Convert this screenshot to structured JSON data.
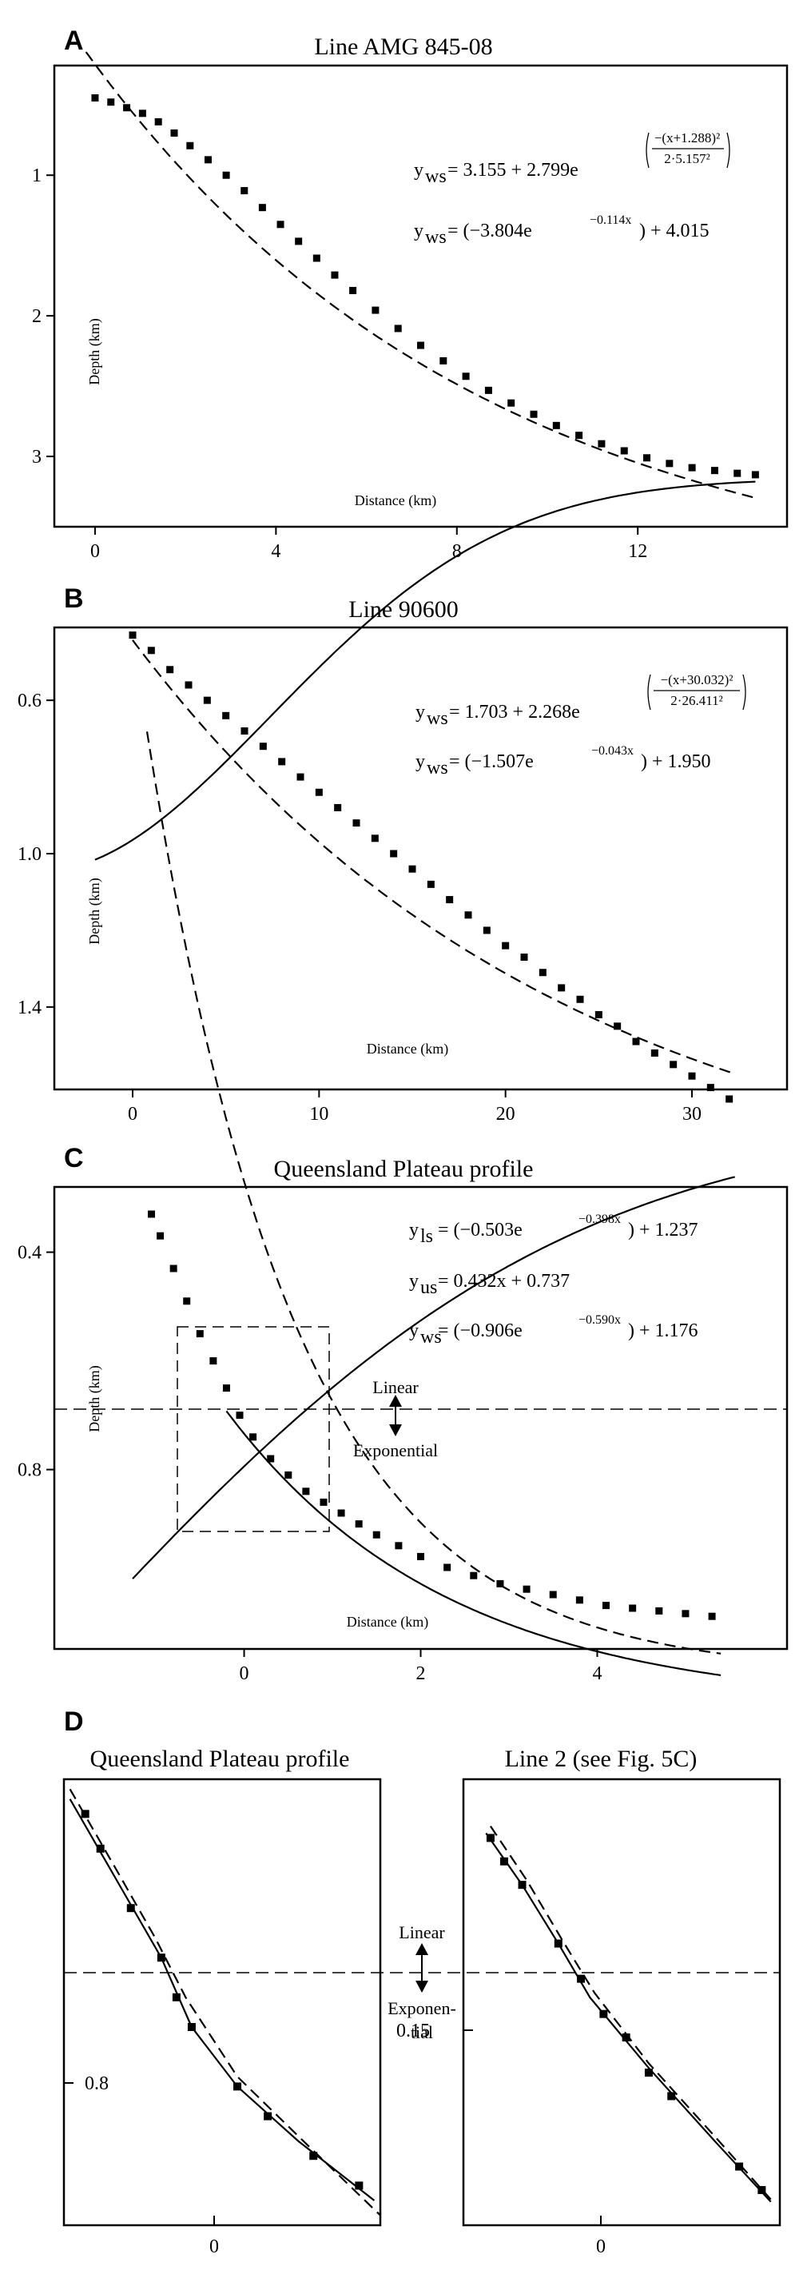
{
  "chart_data": [
    {
      "panel": "A",
      "type": "scatter",
      "title": "Line AMG 845-08",
      "xlabel": "Distance (km)",
      "ylabel": "Depth (km)",
      "xlim": [
        -0.9,
        15.3
      ],
      "ylim": [
        3.5,
        0.22
      ],
      "xticks": [
        "0",
        "4",
        "8",
        "12"
      ],
      "yticks": [
        "1",
        "2",
        "3"
      ],
      "x": [
        0,
        0.35,
        0.7,
        1.05,
        1.4,
        1.75,
        2.1,
        2.5,
        2.9,
        3.3,
        3.7,
        4.1,
        4.5,
        4.9,
        5.3,
        5.7,
        6.2,
        6.7,
        7.2,
        7.7,
        8.2,
        8.7,
        9.2,
        9.7,
        10.2,
        10.7,
        11.2,
        11.7,
        12.2,
        12.7,
        13.2,
        13.7,
        14.2,
        14.6
      ],
      "y": [
        0.45,
        0.48,
        0.52,
        0.56,
        0.62,
        0.7,
        0.79,
        0.89,
        1.0,
        1.11,
        1.23,
        1.35,
        1.47,
        1.59,
        1.71,
        1.82,
        1.96,
        2.09,
        2.21,
        2.32,
        2.43,
        2.53,
        2.62,
        2.7,
        2.78,
        2.85,
        2.91,
        2.96,
        3.01,
        3.05,
        3.08,
        3.1,
        3.12,
        3.13
      ],
      "series": [
        {
          "equation": "y_ws = 3.155 + 2.799 e^(-(x+1.288)²/(2·5.157²))",
          "style": "solid"
        },
        {
          "equation": "y_ws = (-3.804 e^(-0.114x)) + 4.015",
          "style": "dashed"
        }
      ],
      "grid": false
    },
    {
      "panel": "B",
      "type": "scatter",
      "title": "Line 90600",
      "xlabel": "Distance (km)",
      "ylabel": "Depth (km)",
      "xlim": [
        -4.2,
        35.1
      ],
      "ylim": [
        1.615,
        0.41
      ],
      "xticks": [
        "0",
        "10",
        "20",
        "30"
      ],
      "yticks": [
        "0.6",
        "1.0",
        "1.4"
      ],
      "x": [
        0,
        1,
        2,
        3,
        4,
        5,
        6,
        7,
        8,
        9,
        10,
        11,
        12,
        13,
        14,
        15,
        16,
        17,
        18,
        19,
        20,
        21,
        22,
        23,
        24,
        25,
        26,
        27,
        28,
        29,
        30,
        31,
        32
      ],
      "y": [
        0.43,
        0.47,
        0.52,
        0.56,
        0.6,
        0.64,
        0.68,
        0.72,
        0.76,
        0.8,
        0.84,
        0.88,
        0.92,
        0.96,
        1.0,
        1.04,
        1.08,
        1.12,
        1.16,
        1.2,
        1.24,
        1.27,
        1.31,
        1.35,
        1.38,
        1.42,
        1.45,
        1.49,
        1.52,
        1.55,
        1.58,
        1.61,
        1.64
      ],
      "series": [
        {
          "equation": "y_ws = 1.703 + 2.268 e^(-(x+30.032)²/(2·26.411²))",
          "style": "solid"
        },
        {
          "equation": "y_ws = (-1.507 e^(-0.043x)) + 1.950",
          "style": "dashed"
        }
      ],
      "grid": false
    },
    {
      "panel": "C",
      "type": "scatter",
      "title": "Queensland Plateau profile",
      "xlabel": "Distance (km)",
      "ylabel": "Depth (km)",
      "xlim": [
        -2.15,
        6.15
      ],
      "ylim": [
        1.13,
        0.28
      ],
      "xticks": [
        "0",
        "2",
        "4"
      ],
      "yticks": [
        "0.4",
        "0.8"
      ],
      "x": [
        -1.05,
        -0.95,
        -0.8,
        -0.65,
        -0.5,
        -0.35,
        -0.2,
        -0.05,
        0.1,
        0.3,
        0.5,
        0.7,
        0.9,
        1.1,
        1.3,
        1.5,
        1.75,
        2.0,
        2.3,
        2.6,
        2.9,
        3.2,
        3.5,
        3.8,
        4.1,
        4.4,
        4.7,
        5.0,
        5.3
      ],
      "y": [
        0.33,
        0.37,
        0.43,
        0.49,
        0.55,
        0.6,
        0.65,
        0.7,
        0.74,
        0.78,
        0.81,
        0.84,
        0.86,
        0.88,
        0.9,
        0.92,
        0.94,
        0.96,
        0.98,
        0.995,
        1.01,
        1.02,
        1.03,
        1.04,
        1.05,
        1.055,
        1.06,
        1.065,
        1.07
      ],
      "series": [
        {
          "equation": "y_ls = (-0.503 e^(-0.398x)) + 1.237",
          "style": "solid"
        },
        {
          "equation": "y_us = 0.432x + 0.737",
          "style": "dashed"
        },
        {
          "equation": "y_ws = (-0.906 e^(-0.590x)) + 1.176",
          "style": "dashed"
        }
      ],
      "annotations": [
        "Linear",
        "Exponential"
      ],
      "grid": false
    },
    {
      "panel": "D",
      "type": "scatter",
      "title": "Queensland Plateau profile",
      "xticks": [
        "0"
      ],
      "yticks": [
        "0.8"
      ],
      "x": [
        -0.65,
        -0.6,
        -0.5,
        -0.4,
        -0.35,
        -0.3,
        -0.15,
        -0.05,
        0.1,
        0.25
      ],
      "y": [
        0.555,
        0.59,
        0.65,
        0.7,
        0.74,
        0.77,
        0.83,
        0.86,
        0.9,
        0.93
      ],
      "annotations": [
        "Linear",
        "Exponen-",
        "tial"
      ],
      "grid": false
    },
    {
      "panel": "D2",
      "type": "scatter",
      "title": "Line 2 (see Fig. 5C)",
      "yticks": [
        "0.15"
      ],
      "xticks": [
        "0"
      ],
      "x": [
        -0.4,
        -0.37,
        -0.33,
        -0.25,
        -0.2,
        -0.15,
        -0.1,
        -0.05,
        0.0,
        0.15,
        0.2
      ],
      "y": [
        0.08,
        0.09,
        0.1,
        0.125,
        0.14,
        0.155,
        0.165,
        0.18,
        0.19,
        0.22,
        0.23
      ],
      "grid": false
    }
  ],
  "panels": {
    "a": {
      "letter": "A",
      "title": "Line AMG 845-08",
      "ylabel": "Depth (km)",
      "xlabel": "Distance (km)",
      "eq1": {
        "lhs": "y",
        "sub": "ws",
        "rhs": "= 3.155 + 2.799e",
        "num": "−(x+1.288)²",
        "den": "2·5.157²"
      },
      "eq2": {
        "lhs": "y",
        "sub": "ws",
        "rhs": "= (−3.804e",
        "exp": "−0.114x",
        "tail": ") + 4.015"
      }
    },
    "b": {
      "letter": "B",
      "title": "Line 90600",
      "ylabel": "Depth (km)",
      "xlabel": "Distance (km)",
      "eq1": {
        "lhs": "y",
        "sub": "ws",
        "rhs": "= 1.703 + 2.268e",
        "num": "−(x+30.032)²",
        "den": "2·26.411²"
      },
      "eq2": {
        "lhs": "y",
        "sub": "ws",
        "rhs": "= (−1.507e",
        "exp": "−0.043x",
        "tail": ") + 1.950"
      }
    },
    "c": {
      "letter": "C",
      "title": "Queensland Plateau profile",
      "ylabel": "Depth (km)",
      "xlabel": "Distance (km)",
      "eq1": {
        "lhs": "y",
        "sub": "ls",
        "rhs": "= (−0.503e",
        "exp": "−0.398x",
        "tail": ") + 1.237"
      },
      "eq2": {
        "lhs": "y",
        "sub": "us",
        "rhs": "= 0.432x + 0.737"
      },
      "eq3": {
        "lhs": "y",
        "sub": "ws",
        "rhs": "= (−0.906e",
        "exp": "−0.590x",
        "tail": ") + 1.176"
      },
      "linear": "Linear",
      "exponential": "Exponential"
    },
    "d": {
      "letter": "D",
      "title_left": "Queensland Plateau profile",
      "title_right": "Line 2 (see Fig. 5C)",
      "linear": "Linear",
      "expo1": "Exponen-",
      "expo2": "tial",
      "ytick_left": "0.8",
      "ytick_right": "0.15",
      "xtick_left": "0",
      "xtick_right": "0"
    }
  }
}
